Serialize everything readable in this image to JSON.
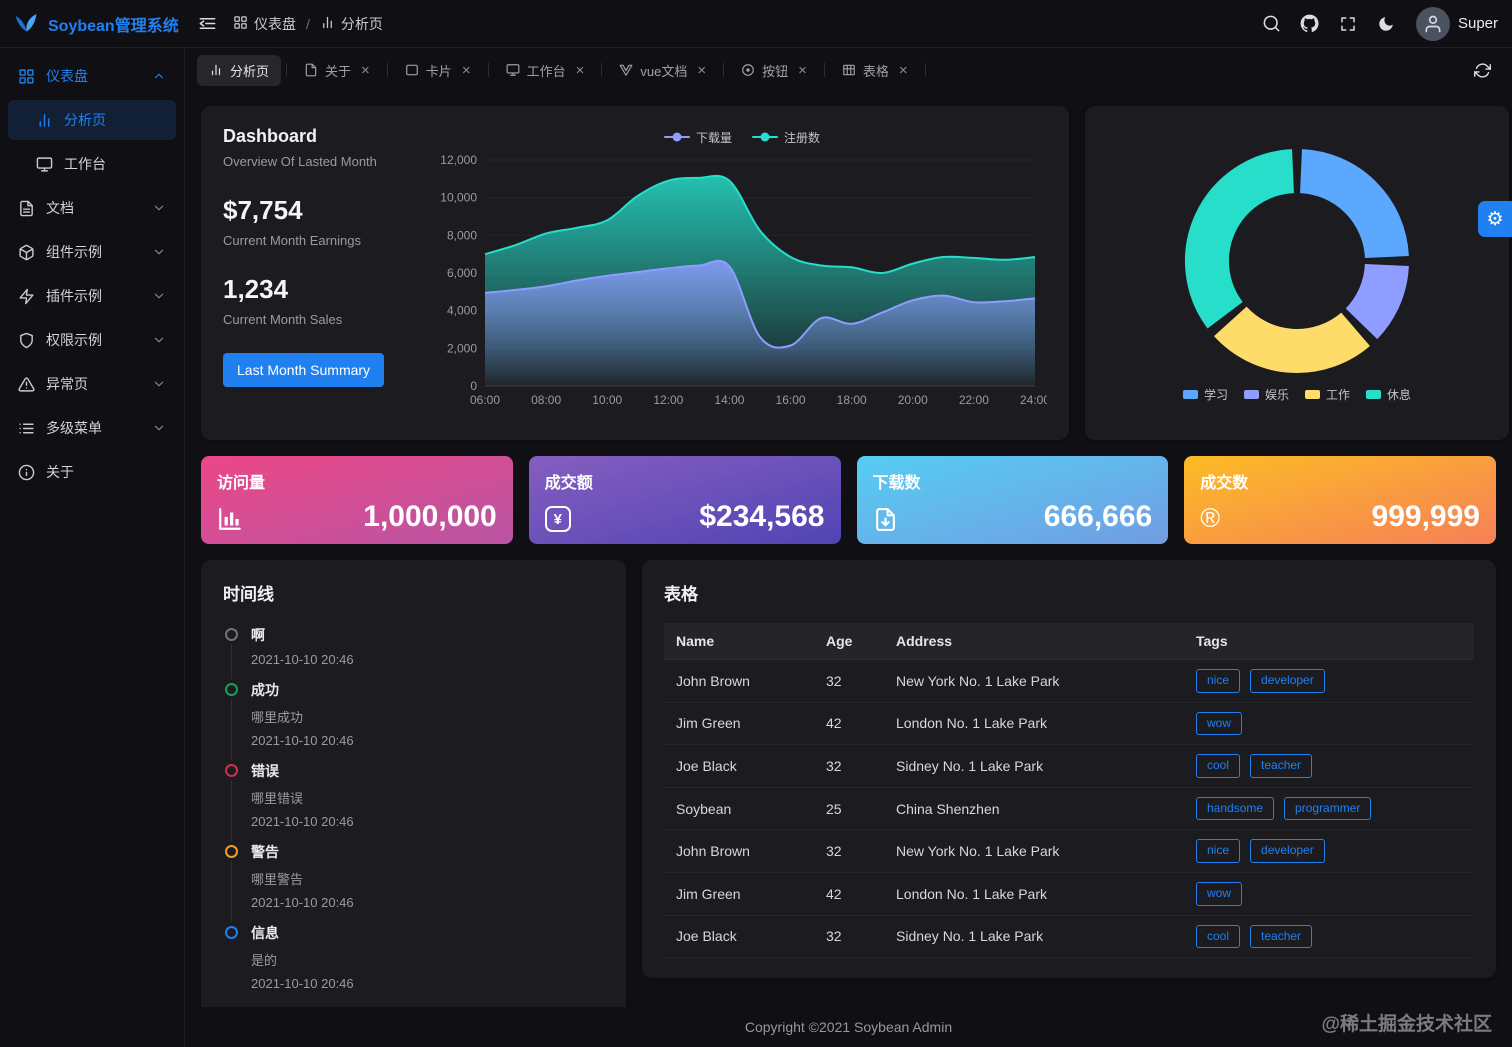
{
  "colors": {
    "primary": "#2080f0",
    "card_bg": "#1b1b20",
    "page_bg": "#101014"
  },
  "app": {
    "title": "Soybean管理系统",
    "username": "Super"
  },
  "breadcrumb": {
    "items": [
      "仪表盘",
      "分析页"
    ],
    "separator": "/"
  },
  "sidebar": {
    "items": [
      {
        "label": "仪表盘"
      },
      {
        "label": "分析页"
      },
      {
        "label": "工作台"
      },
      {
        "label": "文档"
      },
      {
        "label": "组件示例"
      },
      {
        "label": "插件示例"
      },
      {
        "label": "权限示例"
      },
      {
        "label": "异常页"
      },
      {
        "label": "多级菜单"
      },
      {
        "label": "关于"
      }
    ]
  },
  "tabs": {
    "items": [
      {
        "label": "分析页"
      },
      {
        "label": "关于"
      },
      {
        "label": "卡片"
      },
      {
        "label": "工作台"
      },
      {
        "label": "vue文档"
      },
      {
        "label": "按钮"
      },
      {
        "label": "表格"
      }
    ],
    "close_glyph": "×"
  },
  "dashboard": {
    "title": "Dashboard",
    "subtitle": "Overview Of Lasted Month",
    "earnings_value": "$7,754",
    "earnings_label": "Current Month Earnings",
    "sales_value": "1,234",
    "sales_label": "Current Month Sales",
    "summary_button": "Last Month Summary"
  },
  "chart_data": [
    {
      "type": "area",
      "x": [
        "06:00",
        "07:00",
        "08:00",
        "09:00",
        "10:00",
        "11:00",
        "12:00",
        "13:00",
        "14:00",
        "15:00",
        "16:00",
        "17:00",
        "18:00",
        "19:00",
        "20:00",
        "21:00",
        "22:00",
        "23:00",
        "24:00"
      ],
      "x_ticks": [
        "06:00",
        "08:00",
        "10:00",
        "12:00",
        "14:00",
        "16:00",
        "18:00",
        "20:00",
        "22:00",
        "24:00"
      ],
      "ylim": [
        0,
        12000
      ],
      "y_ticks": [
        0,
        2000,
        4000,
        6000,
        8000,
        10000,
        12000
      ],
      "grid": true,
      "legend_position": "top",
      "series": [
        {
          "name": "下载量",
          "color": "#8e9dff",
          "values": [
            4950,
            5100,
            5300,
            5600,
            5850,
            6050,
            6250,
            6400,
            6350,
            2600,
            2150,
            3600,
            3300,
            3900,
            4550,
            4800,
            4450,
            4500,
            4650
          ]
        },
        {
          "name": "注册数",
          "color": "#26deca",
          "values": [
            7000,
            7480,
            8100,
            8400,
            8800,
            10100,
            10900,
            11050,
            10900,
            8250,
            6850,
            6400,
            6300,
            6000,
            6500,
            6850,
            6800,
            6700,
            6850
          ]
        }
      ]
    },
    {
      "type": "pie",
      "donut": true,
      "labels": [
        "学习",
        "娱乐",
        "工作",
        "休息"
      ],
      "values": [
        25,
        13,
        26,
        36
      ],
      "colors": [
        "#5da8ff",
        "#8e9dff",
        "#fedc69",
        "#26deca"
      ],
      "legend_position": "bottom"
    }
  ],
  "stat_cards": [
    {
      "label": "访问量",
      "value": "1,000,000",
      "icon": "bar-chart-icon",
      "gradient": [
        "#ec4786",
        "#b955a4"
      ]
    },
    {
      "label": "成交额",
      "value": "$234,568",
      "icon": "yuan-icon",
      "gradient": [
        "#865ec0",
        "#5144b4"
      ]
    },
    {
      "label": "下载数",
      "value": "666,666",
      "icon": "download-icon",
      "gradient": [
        "#56cdf3",
        "#719de3"
      ]
    },
    {
      "label": "成交数",
      "value": "999,999",
      "icon": "registered-icon",
      "gradient": [
        "#fcbc25",
        "#f68057"
      ]
    }
  ],
  "timeline": {
    "title": "时间线",
    "items": [
      {
        "title": "啊",
        "time": "2021-10-10 20:46",
        "color": "#72727a"
      },
      {
        "title": "成功",
        "content": "哪里成功",
        "time": "2021-10-10 20:46",
        "color": "#18a058"
      },
      {
        "title": "错误",
        "content": "哪里错误",
        "time": "2021-10-10 20:46",
        "color": "#d03050"
      },
      {
        "title": "警告",
        "content": "哪里警告",
        "time": "2021-10-10 20:46",
        "color": "#f0a020"
      },
      {
        "title": "信息",
        "content": "是的",
        "time": "2021-10-10 20:46",
        "color": "#2080f0"
      }
    ]
  },
  "table": {
    "title": "表格",
    "columns": [
      "Name",
      "Age",
      "Address",
      "Tags"
    ],
    "rows": [
      {
        "name": "John Brown",
        "age": 32,
        "address": "New York No. 1 Lake Park",
        "tags": [
          "nice",
          "developer"
        ]
      },
      {
        "name": "Jim Green",
        "age": 42,
        "address": "London No. 1 Lake Park",
        "tags": [
          "wow"
        ]
      },
      {
        "name": "Joe Black",
        "age": 32,
        "address": "Sidney No. 1 Lake Park",
        "tags": [
          "cool",
          "teacher"
        ]
      },
      {
        "name": "Soybean",
        "age": 25,
        "address": "China Shenzhen",
        "tags": [
          "handsome",
          "programmer"
        ]
      },
      {
        "name": "John Brown",
        "age": 32,
        "address": "New York No. 1 Lake Park",
        "tags": [
          "nice",
          "developer"
        ]
      },
      {
        "name": "Jim Green",
        "age": 42,
        "address": "London No. 1 Lake Park",
        "tags": [
          "wow"
        ]
      },
      {
        "name": "Joe Black",
        "age": 32,
        "address": "Sidney No. 1 Lake Park",
        "tags": [
          "cool",
          "teacher"
        ]
      }
    ]
  },
  "footer": {
    "copyright": "Copyright ©2021 Soybean Admin"
  },
  "watermark": "@稀土掘金技术社区"
}
